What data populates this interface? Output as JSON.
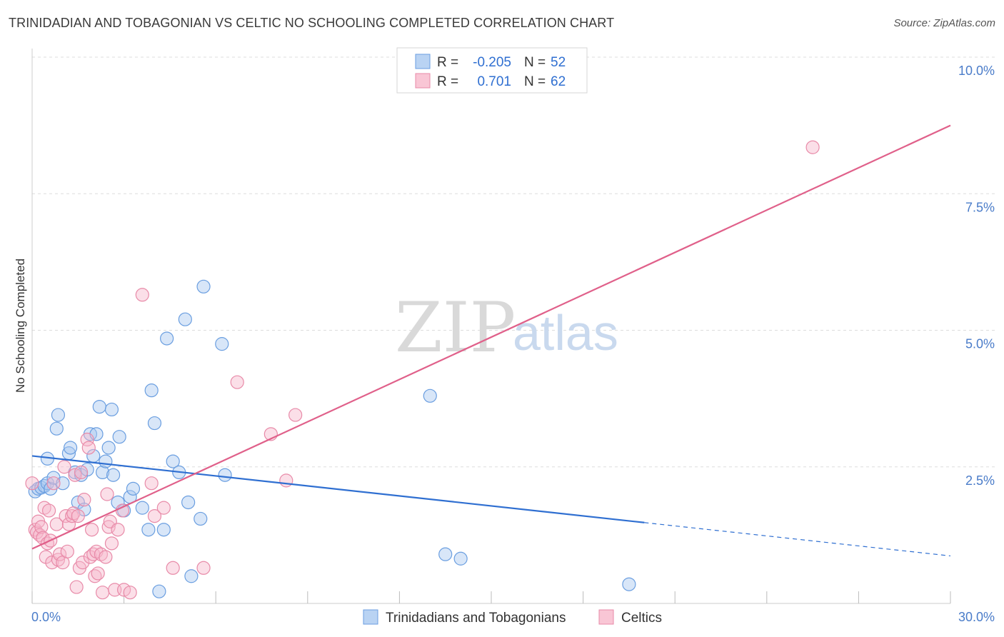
{
  "title": "TRINIDADIAN AND TOBAGONIAN VS CELTIC NO SCHOOLING COMPLETED CORRELATION CHART",
  "source": "Source: ZipAtlas.com",
  "watermark": {
    "zip": "ZIP",
    "atlas": "atlas"
  },
  "colors": {
    "blue_fill": "#a8c8f0",
    "blue_stroke": "#6a9ee0",
    "blue_line": "#2f6fd1",
    "pink_fill": "#f7b8cb",
    "pink_stroke": "#e88aa8",
    "pink_line": "#e0608a",
    "grid": "#dddddd",
    "axis_text": "#4a7cc9"
  },
  "legend_top": {
    "rows": [
      {
        "r_label": "R =",
        "r_value": "-0.205",
        "n_label": "N =",
        "n_value": "52"
      },
      {
        "r_label": "R =",
        "r_value": "0.701",
        "n_label": "N =",
        "n_value": "62"
      }
    ]
  },
  "chart_data": {
    "type": "scatter",
    "title": "TRINIDADIAN AND TOBAGONIAN VS CELTIC NO SCHOOLING COMPLETED CORRELATION CHART",
    "xlabel": "",
    "ylabel": "No Schooling Completed",
    "xlim": [
      0,
      30
    ],
    "ylim": [
      0,
      10
    ],
    "x_tick_labels": [
      "0.0%",
      "30.0%"
    ],
    "y_ticks": [
      2.5,
      5.0,
      7.5,
      10.0
    ],
    "y_tick_labels": [
      "2.5%",
      "5.0%",
      "7.5%",
      "10.0%"
    ],
    "grid": true,
    "legend_position": "bottom",
    "series": [
      {
        "name": "Trinidadians and Tobagonians",
        "r": -0.205,
        "n": 52,
        "trend": {
          "x0": 0,
          "y0": 2.7,
          "x1": 20.0,
          "y1": 1.48,
          "dash_to_x": 30,
          "dash_to_y": 0.87
        },
        "points": [
          [
            0.1,
            2.05
          ],
          [
            0.2,
            2.1
          ],
          [
            0.3,
            2.12
          ],
          [
            0.4,
            2.15
          ],
          [
            0.5,
            2.2
          ],
          [
            0.6,
            2.1
          ],
          [
            0.5,
            2.65
          ],
          [
            0.7,
            2.3
          ],
          [
            0.8,
            3.2
          ],
          [
            0.85,
            3.45
          ],
          [
            1.0,
            2.2
          ],
          [
            1.2,
            2.75
          ],
          [
            1.25,
            2.85
          ],
          [
            1.4,
            2.4
          ],
          [
            1.5,
            1.85
          ],
          [
            1.6,
            2.35
          ],
          [
            1.7,
            1.72
          ],
          [
            1.8,
            2.45
          ],
          [
            1.9,
            3.1
          ],
          [
            2.0,
            2.7
          ],
          [
            2.1,
            3.1
          ],
          [
            2.2,
            3.6
          ],
          [
            2.3,
            2.4
          ],
          [
            2.4,
            2.6
          ],
          [
            2.5,
            2.85
          ],
          [
            2.6,
            3.55
          ],
          [
            2.65,
            2.35
          ],
          [
            2.8,
            1.85
          ],
          [
            2.85,
            3.05
          ],
          [
            3.0,
            1.7
          ],
          [
            3.2,
            1.95
          ],
          [
            3.3,
            2.1
          ],
          [
            3.6,
            1.75
          ],
          [
            3.8,
            1.35
          ],
          [
            3.9,
            3.9
          ],
          [
            4.0,
            3.3
          ],
          [
            4.15,
            0.22
          ],
          [
            4.3,
            1.35
          ],
          [
            4.4,
            4.85
          ],
          [
            4.6,
            2.6
          ],
          [
            4.8,
            2.4
          ],
          [
            5.0,
            5.2
          ],
          [
            5.1,
            1.85
          ],
          [
            5.2,
            0.5
          ],
          [
            5.5,
            1.55
          ],
          [
            5.6,
            5.8
          ],
          [
            6.2,
            4.75
          ],
          [
            6.3,
            2.35
          ],
          [
            13.0,
            3.8
          ],
          [
            13.5,
            0.9
          ],
          [
            14.0,
            0.82
          ],
          [
            19.5,
            0.35
          ]
        ]
      },
      {
        "name": "Celtics",
        "r": 0.701,
        "n": 62,
        "trend": {
          "x0": 0,
          "y0": 1.0,
          "x1": 30,
          "y1": 8.75
        },
        "points": [
          [
            0.1,
            1.35
          ],
          [
            0.15,
            1.3
          ],
          [
            0.2,
            1.5
          ],
          [
            0.25,
            1.25
          ],
          [
            0.3,
            1.4
          ],
          [
            0.35,
            1.2
          ],
          [
            0.4,
            1.75
          ],
          [
            0.45,
            0.85
          ],
          [
            0.5,
            1.1
          ],
          [
            0.55,
            1.7
          ],
          [
            0.6,
            1.15
          ],
          [
            0.65,
            0.75
          ],
          [
            0.7,
            2.2
          ],
          [
            0.8,
            1.45
          ],
          [
            0.85,
            0.8
          ],
          [
            0.9,
            0.9
          ],
          [
            1.0,
            0.75
          ],
          [
            1.05,
            2.5
          ],
          [
            1.1,
            1.6
          ],
          [
            1.15,
            0.95
          ],
          [
            1.2,
            1.45
          ],
          [
            1.3,
            1.6
          ],
          [
            1.35,
            1.65
          ],
          [
            1.4,
            2.35
          ],
          [
            1.45,
            0.3
          ],
          [
            1.5,
            1.6
          ],
          [
            1.55,
            0.65
          ],
          [
            1.6,
            2.4
          ],
          [
            1.65,
            0.75
          ],
          [
            1.7,
            1.9
          ],
          [
            1.8,
            3.0
          ],
          [
            1.85,
            2.85
          ],
          [
            1.9,
            0.85
          ],
          [
            1.95,
            1.35
          ],
          [
            2.0,
            0.9
          ],
          [
            2.05,
            0.5
          ],
          [
            2.1,
            0.95
          ],
          [
            2.15,
            0.55
          ],
          [
            2.25,
            0.9
          ],
          [
            2.3,
            0.2
          ],
          [
            2.4,
            0.85
          ],
          [
            2.45,
            2.0
          ],
          [
            2.5,
            1.4
          ],
          [
            2.55,
            1.5
          ],
          [
            2.6,
            1.1
          ],
          [
            2.7,
            0.25
          ],
          [
            2.8,
            1.35
          ],
          [
            2.95,
            1.7
          ],
          [
            3.0,
            0.25
          ],
          [
            3.2,
            0.2
          ],
          [
            3.6,
            5.65
          ],
          [
            3.9,
            2.2
          ],
          [
            4.0,
            1.6
          ],
          [
            4.3,
            1.75
          ],
          [
            4.6,
            0.65
          ],
          [
            5.6,
            0.65
          ],
          [
            6.7,
            4.05
          ],
          [
            7.8,
            3.1
          ],
          [
            8.3,
            2.25
          ],
          [
            8.6,
            3.45
          ],
          [
            25.5,
            8.35
          ],
          [
            0.0,
            2.2
          ]
        ]
      }
    ]
  }
}
